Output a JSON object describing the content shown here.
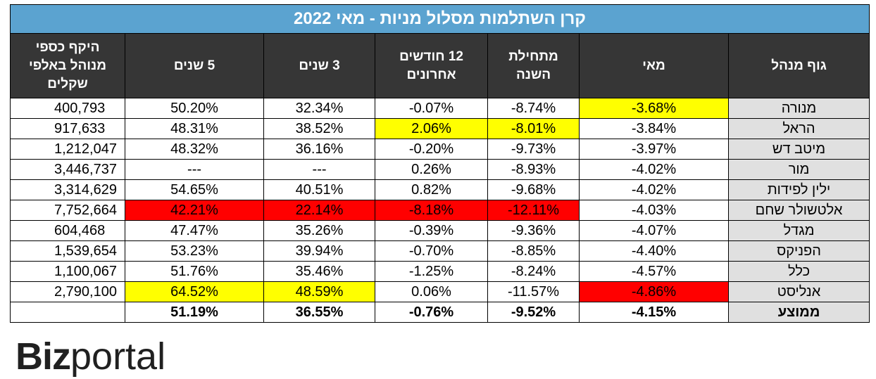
{
  "chart_data": {
    "type": "table",
    "title": "קרן השתלמות מסלול מניות - מאי 2022",
    "columns": [
      "גוף מנהל",
      "מאי",
      "מתחילת השנה",
      "12 חודשים אחרונים",
      "3 שנים",
      "5 שנים",
      "היקף כספי מנוהל באלפי שקלים"
    ],
    "rows": [
      {
        "name": "מנורה",
        "may": "-3.68%",
        "ytd": "-8.74%",
        "m12": "-0.07%",
        "y3": "32.34%",
        "y5": "50.20%",
        "aum": "400,793",
        "highlights": {
          "may": "yellow"
        }
      },
      {
        "name": "הראל",
        "may": "-3.84%",
        "ytd": "-8.01%",
        "m12": "2.06%",
        "y3": "38.52%",
        "y5": "48.31%",
        "aum": "917,633",
        "highlights": {
          "ytd": "yellow",
          "m12": "yellow"
        }
      },
      {
        "name": "מיטב דש",
        "may": "-3.97%",
        "ytd": "-9.73%",
        "m12": "-0.20%",
        "y3": "36.16%",
        "y5": "48.32%",
        "aum": "1,212,047",
        "highlights": {}
      },
      {
        "name": "מור",
        "may": "-4.02%",
        "ytd": "-8.93%",
        "m12": "0.26%",
        "y3": "---",
        "y5": "---",
        "aum": "3,446,737",
        "highlights": {}
      },
      {
        "name": "ילין לפידות",
        "may": "-4.02%",
        "ytd": "-9.68%",
        "m12": "0.82%",
        "y3": "40.51%",
        "y5": "54.65%",
        "aum": "3,314,629",
        "highlights": {}
      },
      {
        "name": "אלטשולר שחם",
        "may": "-4.03%",
        "ytd": "-12.11%",
        "m12": "-8.18%",
        "y3": "22.14%",
        "y5": "42.21%",
        "aum": "7,752,664",
        "highlights": {
          "ytd": "red",
          "m12": "red",
          "y3": "red",
          "y5": "red"
        }
      },
      {
        "name": "מגדל",
        "may": "-4.07%",
        "ytd": "-9.36%",
        "m12": "-0.39%",
        "y3": "35.26%",
        "y5": "47.47%",
        "aum": "604,468",
        "highlights": {}
      },
      {
        "name": "הפניקס",
        "may": "-4.40%",
        "ytd": "-8.85%",
        "m12": "-0.70%",
        "y3": "39.94%",
        "y5": "53.23%",
        "aum": "1,539,654",
        "highlights": {}
      },
      {
        "name": "כלל",
        "may": "-4.57%",
        "ytd": "-8.24%",
        "m12": "-1.25%",
        "y3": "35.46%",
        "y5": "51.76%",
        "aum": "1,100,067",
        "highlights": {}
      },
      {
        "name": "אנליסט",
        "may": "-4.86%",
        "ytd": "-11.57%",
        "m12": "0.06%",
        "y3": "48.59%",
        "y5": "64.52%",
        "aum": "2,790,100",
        "highlights": {
          "may": "red",
          "y3": "yellow",
          "y5": "yellow"
        }
      }
    ],
    "average": {
      "name": "ממוצע",
      "may": "-4.15%",
      "ytd": "-9.52%",
      "m12": "-0.76%",
      "y3": "36.55%",
      "y5": "51.19%",
      "aum": ""
    }
  },
  "colors": {
    "title_bg": "#5ba3d0",
    "header_bg": "#363636",
    "name_bg": "#e0e0e0",
    "yellow": "#ffff00",
    "red": "#ff0000"
  },
  "logo": {
    "part1": "Biz",
    "part2": "portal"
  }
}
